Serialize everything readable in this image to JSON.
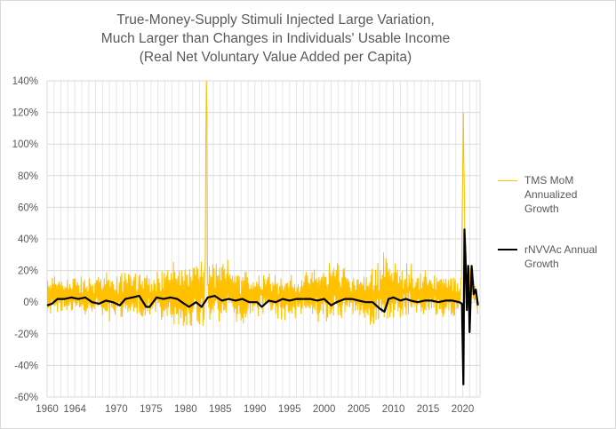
{
  "chart_data": {
    "type": "line",
    "title_lines": [
      "True-Money-Supply Stimuli Injected Large Variation,",
      "Much Larger than Changes in Individuals' Usable Income",
      "(Real Net Voluntary Value Added per Capita)"
    ],
    "xlabel": "",
    "ylabel": "",
    "xlim": [
      1960,
      2022.5
    ],
    "ylim": [
      -0.6,
      1.4
    ],
    "x_ticks": [
      1960,
      1964,
      1970,
      1975,
      1980,
      1985,
      1990,
      1995,
      2000,
      2005,
      2010,
      2015,
      2020
    ],
    "y_ticks": [
      -0.6,
      -0.4,
      -0.2,
      0,
      0.2,
      0.4,
      0.6,
      0.8,
      1.0,
      1.2,
      1.4
    ],
    "y_tick_labels": [
      "-60%",
      "-40%",
      "-20%",
      "0%",
      "20%",
      "40%",
      "60%",
      "80%",
      "100%",
      "120%",
      "140%"
    ],
    "grid": true,
    "legend_position": "right",
    "series": [
      {
        "name": "TMS MoM Annualized Growth",
        "color": "#FFC000",
        "style": "monthly-noisy",
        "x": [
          1960,
          1962,
          1964,
          1966,
          1968,
          1970,
          1972,
          1974,
          1976,
          1978,
          1980,
          1981,
          1982,
          1982.8,
          1983.0,
          1983.2,
          1984,
          1986,
          1988,
          1990,
          1992,
          1994,
          1996,
          1998,
          2000,
          2002,
          2004,
          2006,
          2008,
          2009,
          2010,
          2012,
          2014,
          2016,
          2018,
          2019.8,
          2020.1,
          2020.3,
          2020.6,
          2021,
          2021.5,
          2022,
          2022.3
        ],
        "y": [
          0.03,
          0.05,
          0.04,
          0.03,
          0.05,
          0.02,
          0.07,
          0.03,
          0.06,
          0.06,
          0.03,
          0.05,
          0.07,
          0.06,
          1.45,
          0.07,
          0.06,
          0.08,
          0.03,
          0.04,
          0.07,
          0.03,
          0.03,
          0.06,
          0.04,
          0.08,
          0.05,
          0.02,
          0.06,
          0.12,
          0.06,
          0.08,
          0.06,
          0.06,
          0.03,
          0.05,
          1.2,
          0.35,
          0.15,
          0.12,
          0.08,
          0.02,
          -0.1
        ],
        "amplitude": [
          0.1,
          0.11,
          0.11,
          0.11,
          0.12,
          0.13,
          0.14,
          0.13,
          0.14,
          0.16,
          0.18,
          0.2,
          0.2,
          0.2,
          0.2,
          0.2,
          0.16,
          0.16,
          0.15,
          0.12,
          0.13,
          0.14,
          0.12,
          0.12,
          0.16,
          0.18,
          0.12,
          0.13,
          0.18,
          0.22,
          0.16,
          0.15,
          0.13,
          0.12,
          0.12,
          0.1,
          0.0,
          0.1,
          0.12,
          0.1,
          0.08,
          0.05,
          0.0
        ]
      },
      {
        "name": "rNVVAc Annual Growth",
        "color": "#000000",
        "x": [
          1960,
          1960.7,
          1961.5,
          1962.5,
          1963.5,
          1964.5,
          1965.5,
          1966.5,
          1967.5,
          1968.5,
          1969.5,
          1970.5,
          1971.3,
          1972.3,
          1973.3,
          1974.3,
          1974.8,
          1975.8,
          1976.8,
          1977.8,
          1978.8,
          1979.8,
          1980.5,
          1981.5,
          1982.3,
          1983.2,
          1984.2,
          1985.2,
          1986.2,
          1987.2,
          1988.2,
          1989.2,
          1990.3,
          1991.0,
          1992.0,
          1993.0,
          1994.0,
          1995.0,
          1996.0,
          1997.0,
          1998.0,
          1999.0,
          2000.0,
          2001.0,
          2001.8,
          2003.0,
          2004.0,
          2005.0,
          2006.0,
          2007.0,
          2008.0,
          2008.7,
          2009.3,
          2010.0,
          2011.0,
          2011.8,
          2012.5,
          2013.5,
          2014.5,
          2015.5,
          2016.5,
          2017.5,
          2018.5,
          2019.5,
          2019.9,
          2020.1,
          2020.25,
          2020.4,
          2020.6,
          2020.8,
          2021.0,
          2021.3,
          2021.6,
          2021.9,
          2022.2
        ],
        "y": [
          -0.02,
          -0.01,
          0.02,
          0.02,
          0.03,
          0.02,
          0.03,
          0.0,
          -0.01,
          0.01,
          0.0,
          -0.02,
          0.02,
          0.03,
          0.04,
          -0.03,
          -0.03,
          0.03,
          0.02,
          0.03,
          0.02,
          -0.01,
          -0.03,
          0.0,
          -0.03,
          0.03,
          0.04,
          0.01,
          0.02,
          0.01,
          0.02,
          0.0,
          0.0,
          -0.03,
          0.01,
          0.0,
          0.02,
          0.01,
          0.02,
          0.02,
          0.02,
          0.01,
          0.02,
          -0.02,
          0.0,
          0.02,
          0.02,
          0.01,
          0.0,
          0.0,
          -0.04,
          -0.06,
          0.02,
          0.03,
          0.01,
          0.02,
          0.01,
          0.0,
          0.01,
          0.01,
          0.0,
          0.01,
          0.01,
          0.0,
          -0.01,
          -0.52,
          0.46,
          0.3,
          -0.05,
          0.23,
          -0.19,
          0.23,
          0.05,
          0.08,
          -0.02
        ]
      }
    ]
  },
  "legend": {
    "tms_label": "TMS MoM Annualized Growth",
    "rnvvac_label": "rNVVAc Annual Growth"
  }
}
